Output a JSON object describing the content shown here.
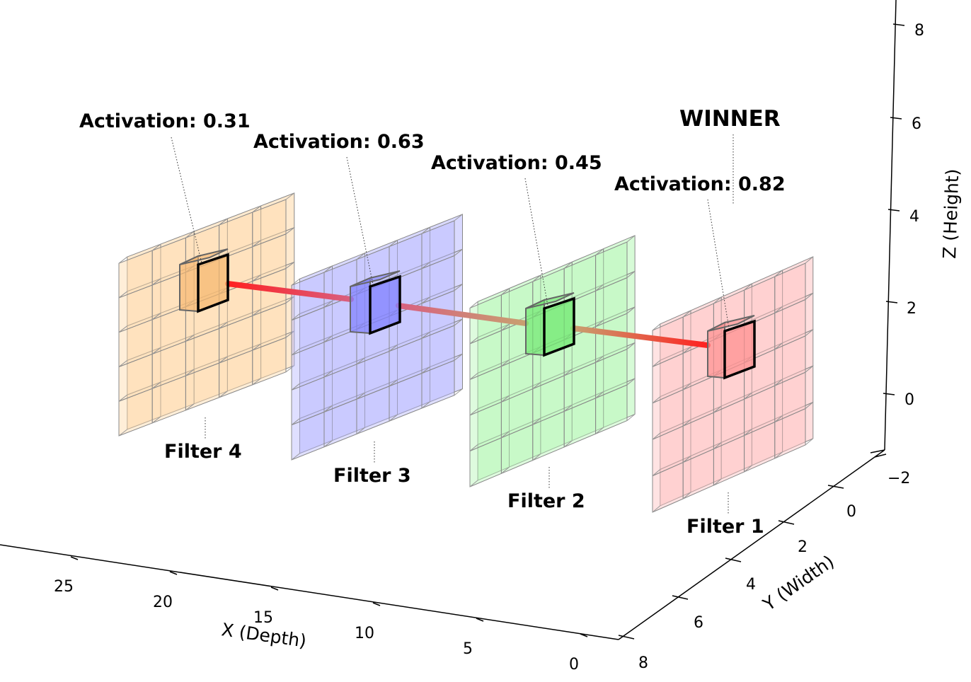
{
  "winner_label": "WINNER",
  "filters": [
    {
      "name": "Filter 4",
      "activation": "Activation: 0.31",
      "fill": "#ffd9a8",
      "cell": "#f6b870",
      "line": "#ff2020"
    },
    {
      "name": "Filter 3",
      "activation": "Activation: 0.63",
      "fill": "#b9b9ff",
      "cell": "#8080ff",
      "line": "#e0507a"
    },
    {
      "name": "Filter 2",
      "activation": "Activation: 0.45",
      "fill": "#b6f7b6",
      "cell": "#70e870",
      "line": "#c8a060"
    },
    {
      "name": "Filter 1",
      "activation": "Activation: 0.82",
      "fill": "#ffc2c2",
      "cell": "#ff9090",
      "line": "#ff2020"
    }
  ],
  "axes": {
    "x": {
      "label": "X (Depth)",
      "ticks": [
        "25",
        "20",
        "15",
        "10",
        "5",
        "0"
      ]
    },
    "y": {
      "label": "Y (Width)",
      "ticks": [
        "−2",
        "0",
        "2",
        "4",
        "6",
        "8"
      ]
    },
    "z": {
      "label": "Z (Height)",
      "ticks": [
        "0",
        "2",
        "4",
        "6",
        "8"
      ]
    }
  }
}
